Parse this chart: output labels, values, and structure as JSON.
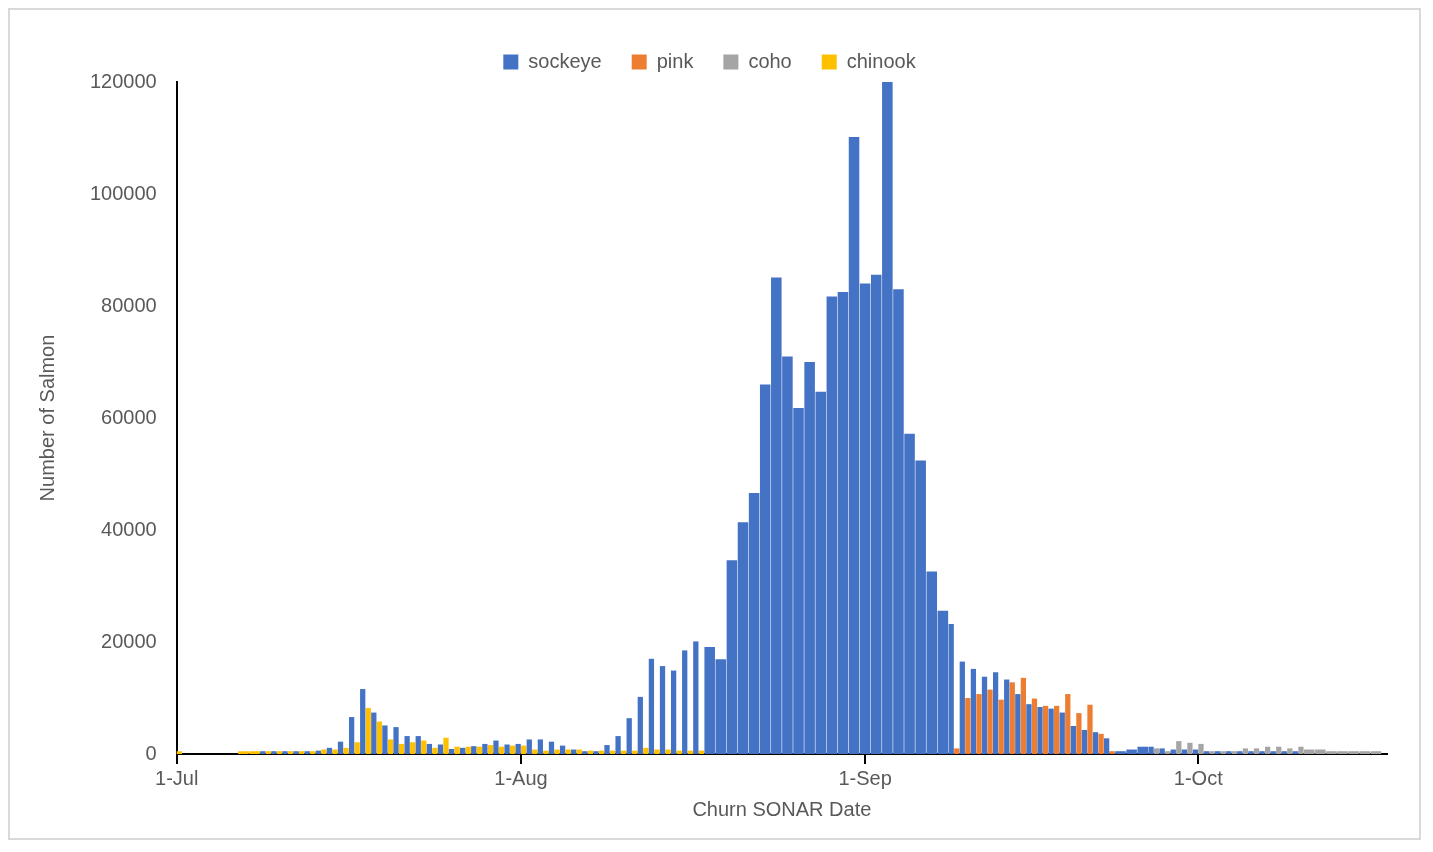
{
  "chart_data": {
    "type": "bar",
    "xlabel": "Churn SONAR Date",
    "ylabel": "Number of Salmon",
    "legend": "top",
    "grid": false,
    "x": [
      "--07-01",
      "--07-02",
      "--07-03",
      "--07-04",
      "--07-05",
      "--07-06",
      "--07-07",
      "--07-08",
      "--07-09",
      "--07-10",
      "--07-11",
      "--07-12",
      "--07-13",
      "--07-14",
      "--07-15",
      "--07-16",
      "--07-17",
      "--07-18",
      "--07-19",
      "--07-20",
      "--07-21",
      "--07-22",
      "--07-23",
      "--07-24",
      "--07-25",
      "--07-26",
      "--07-27",
      "--07-28",
      "--07-29",
      "--07-30",
      "--07-31",
      "--08-01",
      "--08-02",
      "--08-03",
      "--08-04",
      "--08-05",
      "--08-06",
      "--08-07",
      "--08-08",
      "--08-09",
      "--08-10",
      "--08-11",
      "--08-12",
      "--08-13",
      "--08-14",
      "--08-15",
      "--08-16",
      "--08-17",
      "--08-18",
      "--08-19",
      "--08-20",
      "--08-21",
      "--08-22",
      "--08-23",
      "--08-24",
      "--08-25",
      "--08-26",
      "--08-27",
      "--08-28",
      "--08-29",
      "--08-30",
      "--08-31",
      "--09-01",
      "--09-02",
      "--09-03",
      "--09-04",
      "--09-05",
      "--09-06",
      "--09-07",
      "--09-08",
      "--09-09",
      "--09-10",
      "--09-11",
      "--09-12",
      "--09-13",
      "--09-14",
      "--09-15",
      "--09-16",
      "--09-17",
      "--09-18",
      "--09-19",
      "--09-20",
      "--09-21",
      "--09-22",
      "--09-23",
      "--09-24",
      "--09-25",
      "--09-26",
      "--09-27",
      "--09-28",
      "--09-29",
      "--09-30",
      "--10-01",
      "--10-02",
      "--10-03",
      "--10-04",
      "--10-05",
      "--10-06",
      "--10-07",
      "--10-08",
      "--10-09",
      "--10-10",
      "--10-11",
      "--10-12",
      "--10-13",
      "--10-14",
      "--10-15",
      "--10-16",
      "--10-17"
    ],
    "xlim": [
      "--07-01",
      "--10-18"
    ],
    "xticks": [
      {
        "value": "--07-01",
        "label": "1-Jul"
      },
      {
        "value": "--08-01",
        "label": "1-Aug"
      },
      {
        "value": "--09-01",
        "label": "1-Sep"
      },
      {
        "value": "--10-01",
        "label": "1-Oct"
      }
    ],
    "ylim": [
      0,
      120000
    ],
    "yticks": [
      0,
      20000,
      40000,
      60000,
      80000,
      100000,
      120000
    ],
    "series": [
      {
        "name": "sockeye",
        "color": "#4472c4",
        "values": [
          null,
          null,
          null,
          null,
          null,
          null,
          null,
          null,
          500,
          500,
          500,
          500,
          500,
          600,
          1100,
          2200,
          6600,
          11600,
          7400,
          5100,
          4800,
          3200,
          3200,
          1800,
          1700,
          900,
          1100,
          1400,
          1800,
          2400,
          1700,
          1800,
          2600,
          2600,
          2200,
          1500,
          800,
          500,
          500,
          1600,
          3200,
          6400,
          10200,
          17000,
          15700,
          14900,
          18500,
          20100,
          19100,
          16900,
          34600,
          41400,
          46600,
          66000,
          85100,
          71000,
          61800,
          70000,
          64700,
          81700,
          82500,
          110200,
          84000,
          85600,
          120000,
          83000,
          57200,
          52400,
          32600,
          25600,
          23200,
          16500,
          15200,
          13800,
          14600,
          13300,
          10700,
          8900,
          8400,
          8100,
          7400,
          5000,
          4300,
          3900,
          2800,
          500,
          800,
          1300,
          1300,
          1000,
          800,
          800,
          800,
          500,
          500,
          500,
          500,
          500,
          500,
          500,
          500,
          500,
          null,
          null,
          null,
          null,
          null,
          null,
          null
        ]
      },
      {
        "name": "pink",
        "color": "#ed7d31",
        "values": [
          null,
          null,
          null,
          null,
          null,
          null,
          null,
          null,
          null,
          null,
          null,
          null,
          null,
          null,
          null,
          null,
          null,
          null,
          null,
          null,
          null,
          null,
          null,
          null,
          null,
          null,
          null,
          null,
          null,
          null,
          null,
          null,
          null,
          null,
          null,
          null,
          null,
          null,
          null,
          null,
          null,
          null,
          null,
          null,
          null,
          null,
          null,
          null,
          null,
          null,
          null,
          null,
          null,
          null,
          null,
          null,
          null,
          null,
          null,
          null,
          null,
          null,
          null,
          null,
          null,
          null,
          null,
          null,
          null,
          null,
          1000,
          10000,
          10700,
          11500,
          9700,
          12800,
          13600,
          9900,
          8600,
          8600,
          10700,
          7300,
          8800,
          3600,
          500,
          null,
          null,
          null,
          null,
          null,
          null,
          null,
          null,
          null,
          null,
          null,
          null,
          null,
          null,
          null,
          null,
          null,
          null,
          null,
          null,
          null,
          null,
          null,
          null
        ]
      },
      {
        "name": "coho",
        "color": "#a5a5a5",
        "values": [
          null,
          null,
          null,
          null,
          null,
          null,
          null,
          null,
          null,
          null,
          null,
          null,
          null,
          null,
          null,
          null,
          null,
          null,
          null,
          null,
          null,
          null,
          null,
          null,
          null,
          null,
          null,
          null,
          null,
          null,
          null,
          null,
          null,
          null,
          null,
          null,
          null,
          null,
          null,
          null,
          null,
          null,
          null,
          null,
          null,
          null,
          null,
          null,
          null,
          null,
          null,
          null,
          null,
          null,
          null,
          null,
          null,
          null,
          null,
          null,
          null,
          null,
          null,
          null,
          null,
          null,
          null,
          null,
          null,
          null,
          null,
          null,
          null,
          null,
          null,
          null,
          null,
          null,
          null,
          null,
          null,
          null,
          null,
          null,
          null,
          null,
          null,
          null,
          1000,
          500,
          2300,
          2000,
          1800,
          500,
          500,
          500,
          1000,
          1000,
          1300,
          1300,
          1000,
          1300,
          800,
          800,
          500,
          500,
          500,
          500,
          500
        ]
      },
      {
        "name": "chinook",
        "color": "#ffc000",
        "values": [
          500,
          null,
          null,
          null,
          null,
          null,
          500,
          500,
          500,
          500,
          500,
          500,
          500,
          800,
          800,
          1100,
          2100,
          8200,
          5800,
          2600,
          1800,
          2100,
          2400,
          1100,
          2900,
          1300,
          1300,
          1300,
          1600,
          1300,
          1500,
          1500,
          800,
          600,
          800,
          800,
          800,
          600,
          600,
          600,
          600,
          600,
          1100,
          800,
          800,
          600,
          600,
          600,
          null,
          null,
          null,
          null,
          null,
          null,
          null,
          null,
          null,
          null,
          null,
          null,
          null,
          null,
          null,
          null,
          null,
          null,
          null,
          null,
          null,
          null,
          null,
          null,
          null,
          null,
          null,
          null,
          null,
          null,
          null,
          null,
          null,
          null,
          null,
          null,
          null,
          null,
          null,
          null,
          null,
          null,
          null,
          null,
          null,
          null,
          null,
          null,
          null,
          null,
          null,
          null,
          null,
          null,
          null,
          null,
          null,
          null,
          null,
          null,
          null
        ]
      }
    ]
  }
}
